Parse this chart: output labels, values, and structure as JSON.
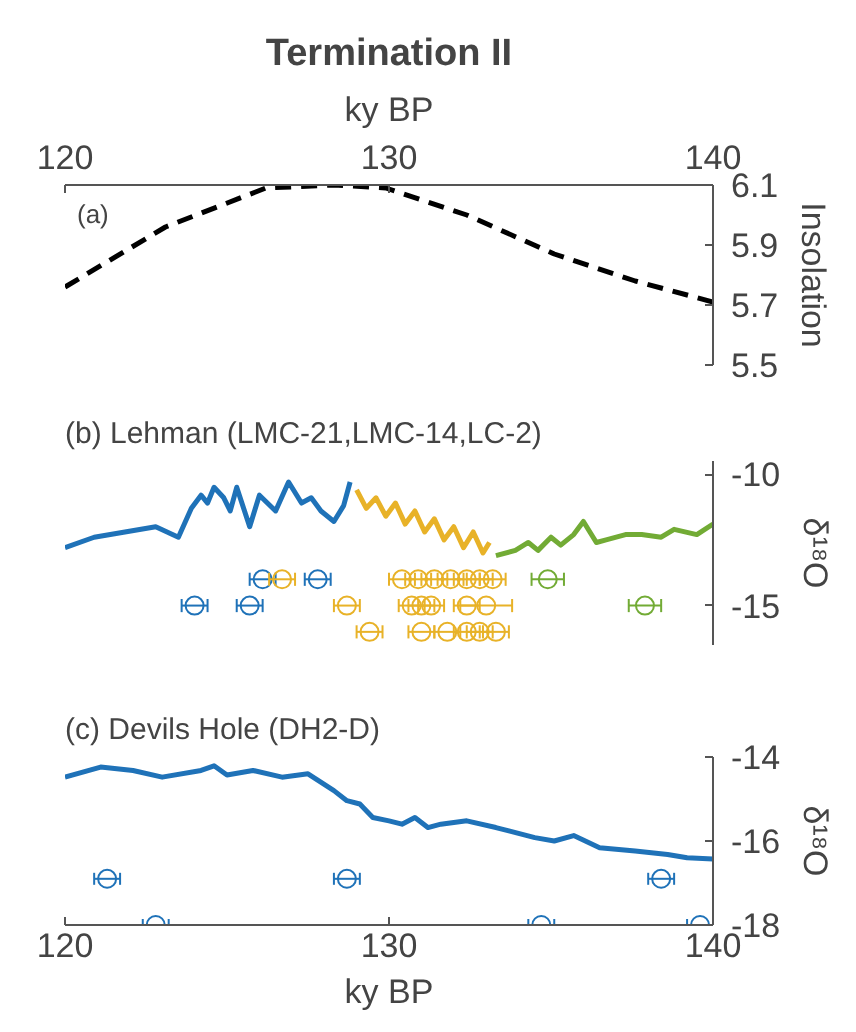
{
  "chart_data": [
    {
      "type": "line",
      "title": "Termination II",
      "xlabel": "ky BP",
      "ylabel": "Insolation",
      "annotations": [
        "(a)"
      ],
      "xlim": [
        120,
        140
      ],
      "xticks": [
        120,
        130,
        140
      ],
      "ylim": [
        5.5,
        6.1
      ],
      "yticks": [
        5.5,
        5.7,
        5.9,
        6.1
      ],
      "line_style": "dashed",
      "series": [
        {
          "color": "#000000",
          "x": [
            120.0,
            123.1,
            126.2,
            128.3,
            129.9,
            132.4,
            135.1,
            137.6,
            140.0
          ],
          "values": [
            5.76,
            5.96,
            6.09,
            6.1,
            6.09,
            6.0,
            5.87,
            5.78,
            5.71
          ]
        }
      ]
    },
    {
      "type": "line",
      "title": "(b) Lehman (LMC-21,LMC-14,LC-2)",
      "ylabel": "δ¹⁸O",
      "xlim": [
        120,
        140
      ],
      "ylim": [
        -16.5,
        -9.5
      ],
      "yticks": [
        -10,
        -15
      ],
      "tick_labels": "y",
      "series": [
        {
          "color": "#1f72b8",
          "x": [
            120.0,
            120.9,
            122.8,
            123.5,
            123.9,
            124.2,
            124.4,
            124.6,
            124.9,
            125.1,
            125.3,
            125.7,
            126.0,
            126.5,
            126.9,
            127.3,
            127.6,
            127.9,
            128.3,
            128.6,
            128.8
          ],
          "values": [
            -12.8,
            -12.4,
            -12.0,
            -12.4,
            -11.3,
            -10.8,
            -11.1,
            -10.5,
            -10.9,
            -11.4,
            -10.5,
            -12.0,
            -10.8,
            -11.4,
            -10.3,
            -11.1,
            -10.9,
            -11.4,
            -11.8,
            -11.2,
            -10.3
          ]
        },
        {
          "color": "#e8b228",
          "x": [
            129.0,
            129.3,
            129.6,
            129.9,
            130.2,
            130.5,
            130.8,
            131.1,
            131.4,
            131.7,
            132.0,
            132.3,
            132.6,
            132.9,
            133.1
          ],
          "values": [
            -10.6,
            -11.3,
            -10.9,
            -11.6,
            -11.1,
            -11.9,
            -11.4,
            -12.2,
            -11.7,
            -12.5,
            -12.0,
            -12.8,
            -12.2,
            -13.0,
            -12.6
          ]
        },
        {
          "color": "#72ab35",
          "x": [
            133.3,
            133.9,
            134.3,
            134.6,
            135.0,
            135.3,
            135.7,
            136.0,
            136.4,
            136.7,
            137.3,
            137.8,
            138.4,
            138.8,
            139.5,
            140.0
          ],
          "values": [
            -13.1,
            -12.9,
            -12.6,
            -12.9,
            -12.4,
            -12.7,
            -12.3,
            -11.8,
            -12.6,
            -12.5,
            -12.3,
            -12.3,
            -12.4,
            -12.1,
            -12.3,
            -11.9
          ]
        },
        {
          "type": "scatter",
          "marker": "circle",
          "color": "#1f72b8",
          "x": [
            126.1,
            127.8,
            124.0,
            125.7
          ],
          "values": [
            -14,
            -14,
            -15,
            -15
          ],
          "xerrors": [
            0.4,
            0.4,
            0.4,
            0.4
          ]
        },
        {
          "type": "scatter",
          "marker": "circle",
          "color": "#e8b228",
          "x": [
            126.7,
            130.4,
            130.9,
            131.4,
            131.9,
            132.4,
            132.8,
            133.2,
            128.7,
            130.7,
            131.0,
            131.3,
            132.4,
            133.0,
            129.4,
            131.0,
            131.8,
            132.4,
            132.8,
            133.3
          ],
          "values": [
            -14,
            -14,
            -14,
            -14,
            -14,
            -14,
            -14,
            -14,
            -15,
            -15,
            -15,
            -15,
            -15,
            -15,
            -16,
            -16,
            -16,
            -16,
            -16,
            -16
          ],
          "xerrors": [
            0.4,
            0.4,
            0.4,
            0.4,
            0.4,
            0.4,
            0.4,
            0.4,
            0.4,
            0.4,
            0.4,
            0.4,
            0.4,
            0.8,
            0.4,
            0.4,
            0.4,
            0.4,
            0.4,
            0.4
          ]
        },
        {
          "type": "scatter",
          "marker": "circle",
          "color": "#72ab35",
          "x": [
            134.9,
            137.9
          ],
          "values": [
            -14,
            -15
          ],
          "xerrors": [
            0.5,
            0.5
          ]
        }
      ]
    },
    {
      "type": "line",
      "title": "(c) Devils Hole (DH2-D)",
      "xlabel": "ky BP",
      "ylabel": "δ¹⁸O",
      "xlim": [
        120,
        140
      ],
      "xticks": [
        120,
        130,
        140
      ],
      "ylim": [
        -18,
        -14
      ],
      "yticks": [
        -14,
        -16,
        -18
      ],
      "series": [
        {
          "color": "#1f72b8",
          "x": [
            120.0,
            121.1,
            122.1,
            123.0,
            124.2,
            124.6,
            125.0,
            125.8,
            126.7,
            127.5,
            128.3,
            128.7,
            129.1,
            129.5,
            130.0,
            130.4,
            130.8,
            131.2,
            131.6,
            132.4,
            133.3,
            133.7,
            134.5,
            135.1,
            135.7,
            136.5,
            137.6,
            138.6,
            139.2,
            140.0
          ],
          "values": [
            -14.48,
            -14.24,
            -14.32,
            -14.48,
            -14.32,
            -14.21,
            -14.43,
            -14.32,
            -14.48,
            -14.4,
            -14.8,
            -15.04,
            -15.12,
            -15.44,
            -15.52,
            -15.6,
            -15.44,
            -15.68,
            -15.6,
            -15.52,
            -15.68,
            -15.76,
            -15.92,
            -16.0,
            -15.87,
            -16.16,
            -16.24,
            -16.32,
            -16.4,
            -16.43
          ]
        },
        {
          "type": "scatter",
          "marker": "circle",
          "color": "#1f72b8",
          "x": [
            121.3,
            128.7,
            138.4,
            122.8,
            134.7,
            139.6
          ],
          "values": [
            -16.9,
            -16.9,
            -16.9,
            -18,
            -18,
            -18
          ],
          "xerrors": [
            0.4,
            0.4,
            0.4,
            0.4,
            0.4,
            0.4
          ]
        }
      ]
    }
  ]
}
